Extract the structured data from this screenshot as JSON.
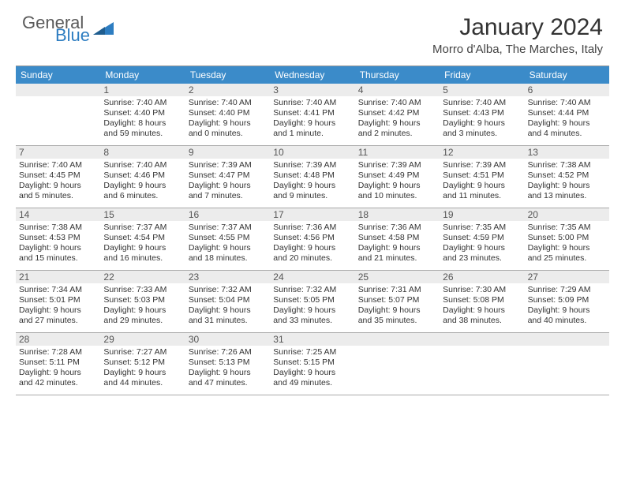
{
  "logo": {
    "word1": "General",
    "word2": "Blue"
  },
  "title": "January 2024",
  "location": "Morro d'Alba, The Marches, Italy",
  "colors": {
    "header_bar": "#3b8bc9",
    "daynum_bg": "#ececec",
    "border": "#aaaaaa",
    "text": "#333333",
    "logo_gray": "#5a5a5a",
    "logo_blue": "#2d7dc1"
  },
  "dow": [
    "Sunday",
    "Monday",
    "Tuesday",
    "Wednesday",
    "Thursday",
    "Friday",
    "Saturday"
  ],
  "weeks": [
    [
      {
        "n": "",
        "sr": "",
        "ss": "",
        "dl1": "",
        "dl2": ""
      },
      {
        "n": "1",
        "sr": "Sunrise: 7:40 AM",
        "ss": "Sunset: 4:40 PM",
        "dl1": "Daylight: 8 hours",
        "dl2": "and 59 minutes."
      },
      {
        "n": "2",
        "sr": "Sunrise: 7:40 AM",
        "ss": "Sunset: 4:40 PM",
        "dl1": "Daylight: 9 hours",
        "dl2": "and 0 minutes."
      },
      {
        "n": "3",
        "sr": "Sunrise: 7:40 AM",
        "ss": "Sunset: 4:41 PM",
        "dl1": "Daylight: 9 hours",
        "dl2": "and 1 minute."
      },
      {
        "n": "4",
        "sr": "Sunrise: 7:40 AM",
        "ss": "Sunset: 4:42 PM",
        "dl1": "Daylight: 9 hours",
        "dl2": "and 2 minutes."
      },
      {
        "n": "5",
        "sr": "Sunrise: 7:40 AM",
        "ss": "Sunset: 4:43 PM",
        "dl1": "Daylight: 9 hours",
        "dl2": "and 3 minutes."
      },
      {
        "n": "6",
        "sr": "Sunrise: 7:40 AM",
        "ss": "Sunset: 4:44 PM",
        "dl1": "Daylight: 9 hours",
        "dl2": "and 4 minutes."
      }
    ],
    [
      {
        "n": "7",
        "sr": "Sunrise: 7:40 AM",
        "ss": "Sunset: 4:45 PM",
        "dl1": "Daylight: 9 hours",
        "dl2": "and 5 minutes."
      },
      {
        "n": "8",
        "sr": "Sunrise: 7:40 AM",
        "ss": "Sunset: 4:46 PM",
        "dl1": "Daylight: 9 hours",
        "dl2": "and 6 minutes."
      },
      {
        "n": "9",
        "sr": "Sunrise: 7:39 AM",
        "ss": "Sunset: 4:47 PM",
        "dl1": "Daylight: 9 hours",
        "dl2": "and 7 minutes."
      },
      {
        "n": "10",
        "sr": "Sunrise: 7:39 AM",
        "ss": "Sunset: 4:48 PM",
        "dl1": "Daylight: 9 hours",
        "dl2": "and 9 minutes."
      },
      {
        "n": "11",
        "sr": "Sunrise: 7:39 AM",
        "ss": "Sunset: 4:49 PM",
        "dl1": "Daylight: 9 hours",
        "dl2": "and 10 minutes."
      },
      {
        "n": "12",
        "sr": "Sunrise: 7:39 AM",
        "ss": "Sunset: 4:51 PM",
        "dl1": "Daylight: 9 hours",
        "dl2": "and 11 minutes."
      },
      {
        "n": "13",
        "sr": "Sunrise: 7:38 AM",
        "ss": "Sunset: 4:52 PM",
        "dl1": "Daylight: 9 hours",
        "dl2": "and 13 minutes."
      }
    ],
    [
      {
        "n": "14",
        "sr": "Sunrise: 7:38 AM",
        "ss": "Sunset: 4:53 PM",
        "dl1": "Daylight: 9 hours",
        "dl2": "and 15 minutes."
      },
      {
        "n": "15",
        "sr": "Sunrise: 7:37 AM",
        "ss": "Sunset: 4:54 PM",
        "dl1": "Daylight: 9 hours",
        "dl2": "and 16 minutes."
      },
      {
        "n": "16",
        "sr": "Sunrise: 7:37 AM",
        "ss": "Sunset: 4:55 PM",
        "dl1": "Daylight: 9 hours",
        "dl2": "and 18 minutes."
      },
      {
        "n": "17",
        "sr": "Sunrise: 7:36 AM",
        "ss": "Sunset: 4:56 PM",
        "dl1": "Daylight: 9 hours",
        "dl2": "and 20 minutes."
      },
      {
        "n": "18",
        "sr": "Sunrise: 7:36 AM",
        "ss": "Sunset: 4:58 PM",
        "dl1": "Daylight: 9 hours",
        "dl2": "and 21 minutes."
      },
      {
        "n": "19",
        "sr": "Sunrise: 7:35 AM",
        "ss": "Sunset: 4:59 PM",
        "dl1": "Daylight: 9 hours",
        "dl2": "and 23 minutes."
      },
      {
        "n": "20",
        "sr": "Sunrise: 7:35 AM",
        "ss": "Sunset: 5:00 PM",
        "dl1": "Daylight: 9 hours",
        "dl2": "and 25 minutes."
      }
    ],
    [
      {
        "n": "21",
        "sr": "Sunrise: 7:34 AM",
        "ss": "Sunset: 5:01 PM",
        "dl1": "Daylight: 9 hours",
        "dl2": "and 27 minutes."
      },
      {
        "n": "22",
        "sr": "Sunrise: 7:33 AM",
        "ss": "Sunset: 5:03 PM",
        "dl1": "Daylight: 9 hours",
        "dl2": "and 29 minutes."
      },
      {
        "n": "23",
        "sr": "Sunrise: 7:32 AM",
        "ss": "Sunset: 5:04 PM",
        "dl1": "Daylight: 9 hours",
        "dl2": "and 31 minutes."
      },
      {
        "n": "24",
        "sr": "Sunrise: 7:32 AM",
        "ss": "Sunset: 5:05 PM",
        "dl1": "Daylight: 9 hours",
        "dl2": "and 33 minutes."
      },
      {
        "n": "25",
        "sr": "Sunrise: 7:31 AM",
        "ss": "Sunset: 5:07 PM",
        "dl1": "Daylight: 9 hours",
        "dl2": "and 35 minutes."
      },
      {
        "n": "26",
        "sr": "Sunrise: 7:30 AM",
        "ss": "Sunset: 5:08 PM",
        "dl1": "Daylight: 9 hours",
        "dl2": "and 38 minutes."
      },
      {
        "n": "27",
        "sr": "Sunrise: 7:29 AM",
        "ss": "Sunset: 5:09 PM",
        "dl1": "Daylight: 9 hours",
        "dl2": "and 40 minutes."
      }
    ],
    [
      {
        "n": "28",
        "sr": "Sunrise: 7:28 AM",
        "ss": "Sunset: 5:11 PM",
        "dl1": "Daylight: 9 hours",
        "dl2": "and 42 minutes."
      },
      {
        "n": "29",
        "sr": "Sunrise: 7:27 AM",
        "ss": "Sunset: 5:12 PM",
        "dl1": "Daylight: 9 hours",
        "dl2": "and 44 minutes."
      },
      {
        "n": "30",
        "sr": "Sunrise: 7:26 AM",
        "ss": "Sunset: 5:13 PM",
        "dl1": "Daylight: 9 hours",
        "dl2": "and 47 minutes."
      },
      {
        "n": "31",
        "sr": "Sunrise: 7:25 AM",
        "ss": "Sunset: 5:15 PM",
        "dl1": "Daylight: 9 hours",
        "dl2": "and 49 minutes."
      },
      {
        "n": "",
        "sr": "",
        "ss": "",
        "dl1": "",
        "dl2": ""
      },
      {
        "n": "",
        "sr": "",
        "ss": "",
        "dl1": "",
        "dl2": ""
      },
      {
        "n": "",
        "sr": "",
        "ss": "",
        "dl1": "",
        "dl2": ""
      }
    ]
  ]
}
